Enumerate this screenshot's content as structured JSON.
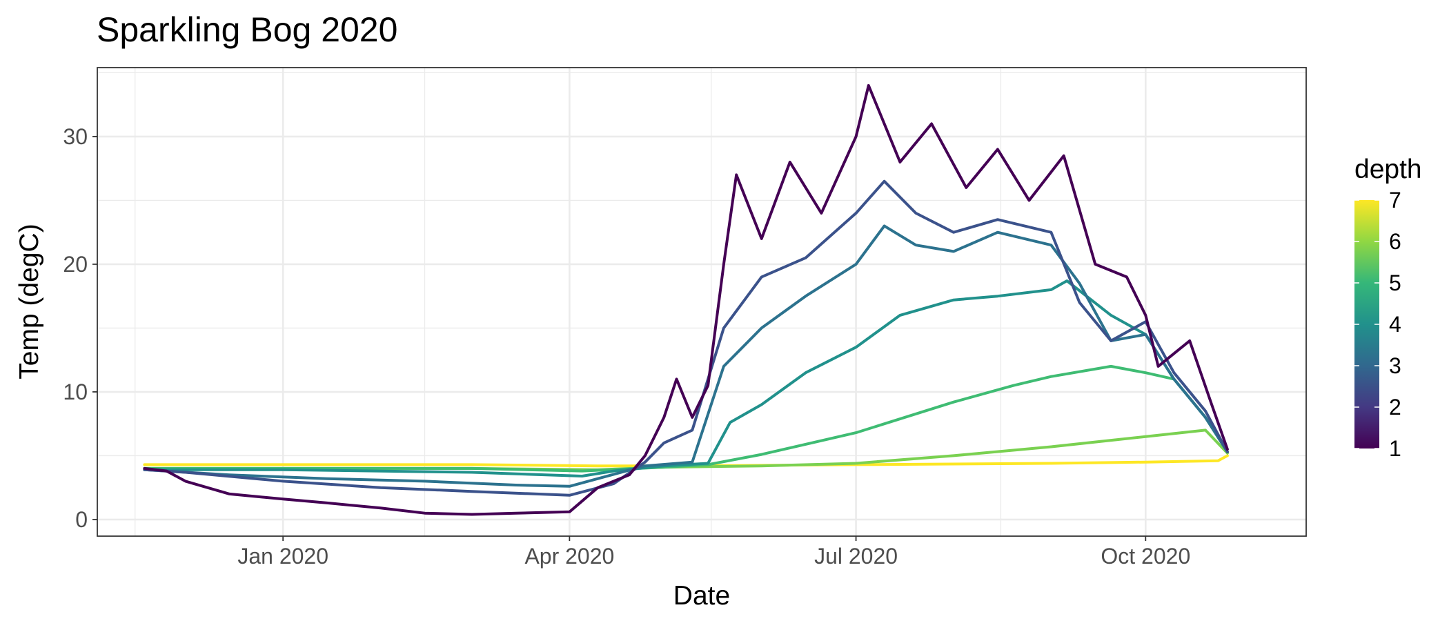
{
  "chart_data": {
    "type": "line",
    "title": "Sparkling Bog 2020",
    "xlabel": "Date",
    "ylabel": "Temp (degC)",
    "x_type": "date",
    "xlim": [
      "2019-11-03",
      "2020-11-21"
    ],
    "ylim": [
      -1.3,
      35.4
    ],
    "y_ticks": [
      0,
      10,
      20,
      30
    ],
    "x_ticks": [
      {
        "date": "2020-01-01",
        "label": "Jan 2020"
      },
      {
        "date": "2020-04-01",
        "label": "Apr 2020"
      },
      {
        "date": "2020-07-01",
        "label": "Jul 2020"
      },
      {
        "date": "2020-10-01",
        "label": "Oct 2020"
      }
    ],
    "x_minor_ticks": [
      "2019-11-15",
      "2020-02-15",
      "2020-05-16",
      "2020-08-16"
    ],
    "grid": true,
    "legend": {
      "title": "depth",
      "position": "right",
      "type": "colorbar",
      "min": 1,
      "max": 7,
      "labels": [
        "1",
        "2",
        "3",
        "4",
        "5",
        "6",
        "7"
      ],
      "colors": [
        "#440154",
        "#443983",
        "#31688e",
        "#21918c",
        "#35b779",
        "#90d743",
        "#fde725"
      ]
    },
    "series": [
      {
        "depth": 7,
        "color": "#fde725",
        "points": [
          [
            "2019-11-18",
            4.3
          ],
          [
            "2020-01-01",
            4.3
          ],
          [
            "2020-03-01",
            4.3
          ],
          [
            "2020-04-10",
            4.2
          ],
          [
            "2020-05-10",
            4.2
          ],
          [
            "2020-07-01",
            4.3
          ],
          [
            "2020-09-01",
            4.4
          ],
          [
            "2020-10-01",
            4.5
          ],
          [
            "2020-10-24",
            4.6
          ],
          [
            "2020-10-27",
            5.0
          ]
        ]
      },
      {
        "depth": 6,
        "color": "#7ad151",
        "points": [
          [
            "2019-11-18",
            4.0
          ],
          [
            "2020-01-01",
            4.0
          ],
          [
            "2020-03-01",
            4.0
          ],
          [
            "2020-04-10",
            3.9
          ],
          [
            "2020-05-01",
            4.1
          ],
          [
            "2020-06-01",
            4.2
          ],
          [
            "2020-07-01",
            4.4
          ],
          [
            "2020-08-01",
            5.0
          ],
          [
            "2020-09-01",
            5.7
          ],
          [
            "2020-10-01",
            6.5
          ],
          [
            "2020-10-20",
            7.0
          ],
          [
            "2020-10-27",
            5.2
          ]
        ]
      },
      {
        "depth": 5,
        "color": "#3fbc73",
        "points": [
          [
            "2019-11-18",
            4.0
          ],
          [
            "2020-01-01",
            4.0
          ],
          [
            "2020-03-01",
            4.0
          ],
          [
            "2020-04-05",
            3.8
          ],
          [
            "2020-05-01",
            4.1
          ],
          [
            "2020-05-15",
            4.3
          ],
          [
            "2020-06-01",
            5.1
          ],
          [
            "2020-07-01",
            6.8
          ],
          [
            "2020-08-01",
            9.2
          ],
          [
            "2020-08-20",
            10.5
          ],
          [
            "2020-09-01",
            11.2
          ],
          [
            "2020-09-20",
            12.0
          ],
          [
            "2020-10-01",
            11.5
          ],
          [
            "2020-10-10",
            11.0
          ],
          [
            "2020-10-20",
            8.0
          ],
          [
            "2020-10-27",
            5.3
          ]
        ]
      },
      {
        "depth": 4,
        "color": "#21918c",
        "points": [
          [
            "2019-11-18",
            3.9
          ],
          [
            "2020-01-01",
            3.9
          ],
          [
            "2020-03-01",
            3.7
          ],
          [
            "2020-04-05",
            3.4
          ],
          [
            "2020-04-15",
            3.8
          ],
          [
            "2020-05-01",
            4.2
          ],
          [
            "2020-05-15",
            4.4
          ],
          [
            "2020-05-22",
            7.6
          ],
          [
            "2020-06-01",
            9.0
          ],
          [
            "2020-06-15",
            11.5
          ],
          [
            "2020-07-01",
            13.5
          ],
          [
            "2020-07-15",
            16.0
          ],
          [
            "2020-08-01",
            17.2
          ],
          [
            "2020-08-15",
            17.5
          ],
          [
            "2020-09-01",
            18.0
          ],
          [
            "2020-09-06",
            18.7
          ],
          [
            "2020-09-20",
            16.0
          ],
          [
            "2020-10-01",
            14.5
          ],
          [
            "2020-10-10",
            11.0
          ],
          [
            "2020-10-20",
            8.0
          ],
          [
            "2020-10-27",
            5.3
          ]
        ]
      },
      {
        "depth": 3,
        "color": "#2c728e",
        "points": [
          [
            "2019-11-18",
            3.9
          ],
          [
            "2019-12-15",
            3.5
          ],
          [
            "2020-01-15",
            3.2
          ],
          [
            "2020-02-15",
            3.0
          ],
          [
            "2020-03-15",
            2.7
          ],
          [
            "2020-04-01",
            2.6
          ],
          [
            "2020-04-10",
            3.2
          ],
          [
            "2020-04-25",
            4.2
          ],
          [
            "2020-05-10",
            4.5
          ],
          [
            "2020-05-20",
            12.0
          ],
          [
            "2020-06-01",
            15.0
          ],
          [
            "2020-06-15",
            17.5
          ],
          [
            "2020-07-01",
            20.0
          ],
          [
            "2020-07-10",
            23.0
          ],
          [
            "2020-07-20",
            21.5
          ],
          [
            "2020-08-01",
            21.0
          ],
          [
            "2020-08-15",
            22.5
          ],
          [
            "2020-09-01",
            21.5
          ],
          [
            "2020-09-10",
            18.5
          ],
          [
            "2020-09-20",
            14.0
          ],
          [
            "2020-10-01",
            14.5
          ],
          [
            "2020-10-10",
            11.0
          ],
          [
            "2020-10-20",
            8.0
          ],
          [
            "2020-10-27",
            5.3
          ]
        ]
      },
      {
        "depth": 2,
        "color": "#3b528b",
        "points": [
          [
            "2019-11-18",
            3.9
          ],
          [
            "2019-12-01",
            3.7
          ],
          [
            "2020-01-01",
            3.0
          ],
          [
            "2020-02-01",
            2.5
          ],
          [
            "2020-03-01",
            2.2
          ],
          [
            "2020-04-01",
            1.9
          ],
          [
            "2020-04-15",
            2.8
          ],
          [
            "2020-04-25",
            4.5
          ],
          [
            "2020-05-01",
            6.0
          ],
          [
            "2020-05-10",
            7.0
          ],
          [
            "2020-05-20",
            15.0
          ],
          [
            "2020-06-01",
            19.0
          ],
          [
            "2020-06-15",
            20.5
          ],
          [
            "2020-07-01",
            24.0
          ],
          [
            "2020-07-10",
            26.5
          ],
          [
            "2020-07-20",
            24.0
          ],
          [
            "2020-08-01",
            22.5
          ],
          [
            "2020-08-15",
            23.5
          ],
          [
            "2020-09-01",
            22.5
          ],
          [
            "2020-09-10",
            17.0
          ],
          [
            "2020-09-20",
            14.0
          ],
          [
            "2020-10-01",
            15.5
          ],
          [
            "2020-10-10",
            11.5
          ],
          [
            "2020-10-20",
            8.5
          ],
          [
            "2020-10-27",
            5.3
          ]
        ]
      },
      {
        "depth": 1,
        "color": "#440154",
        "points": [
          [
            "2019-11-18",
            4.0
          ],
          [
            "2019-11-25",
            3.8
          ],
          [
            "2019-12-01",
            3.0
          ],
          [
            "2019-12-15",
            2.0
          ],
          [
            "2020-01-01",
            1.6
          ],
          [
            "2020-01-15",
            1.3
          ],
          [
            "2020-02-01",
            0.9
          ],
          [
            "2020-02-15",
            0.5
          ],
          [
            "2020-03-01",
            0.4
          ],
          [
            "2020-03-15",
            0.5
          ],
          [
            "2020-04-01",
            0.6
          ],
          [
            "2020-04-10",
            2.5
          ],
          [
            "2020-04-20",
            3.5
          ],
          [
            "2020-04-25",
            5.0
          ],
          [
            "2020-05-01",
            8.0
          ],
          [
            "2020-05-05",
            11.0
          ],
          [
            "2020-05-10",
            8.0
          ],
          [
            "2020-05-15",
            10.5
          ],
          [
            "2020-05-20",
            20.0
          ],
          [
            "2020-05-24",
            27.0
          ],
          [
            "2020-06-01",
            22.0
          ],
          [
            "2020-06-10",
            28.0
          ],
          [
            "2020-06-20",
            24.0
          ],
          [
            "2020-07-01",
            30.0
          ],
          [
            "2020-07-05",
            34.0
          ],
          [
            "2020-07-15",
            28.0
          ],
          [
            "2020-07-25",
            31.0
          ],
          [
            "2020-08-05",
            26.0
          ],
          [
            "2020-08-15",
            29.0
          ],
          [
            "2020-08-25",
            25.0
          ],
          [
            "2020-09-05",
            28.5
          ],
          [
            "2020-09-15",
            20.0
          ],
          [
            "2020-09-25",
            19.0
          ],
          [
            "2020-10-01",
            16.0
          ],
          [
            "2020-10-05",
            12.0
          ],
          [
            "2020-10-15",
            14.0
          ],
          [
            "2020-10-22",
            9.0
          ],
          [
            "2020-10-27",
            5.5
          ]
        ]
      }
    ]
  }
}
